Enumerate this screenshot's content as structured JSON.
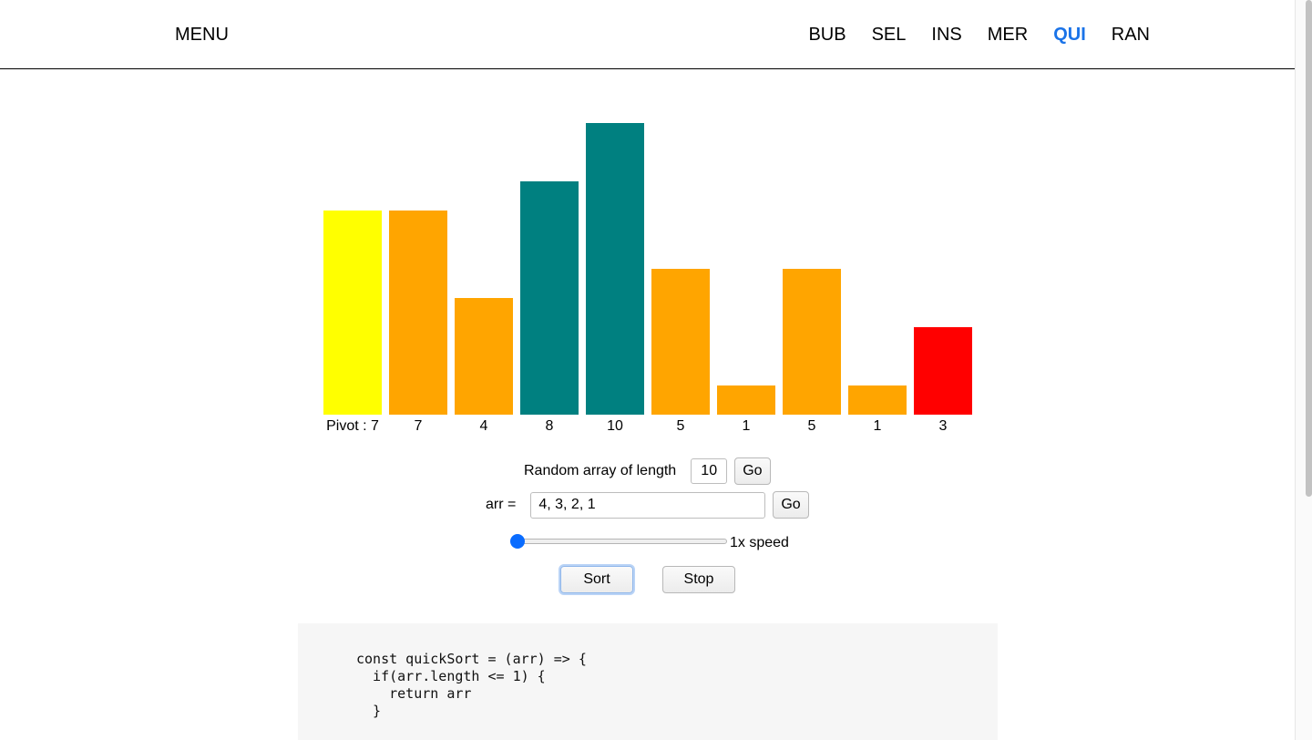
{
  "header": {
    "menu_label": "MENU",
    "nav": [
      {
        "label": "BUB",
        "active": false
      },
      {
        "label": "SEL",
        "active": false
      },
      {
        "label": "INS",
        "active": false
      },
      {
        "label": "MER",
        "active": false
      },
      {
        "label": "QUI",
        "active": true
      },
      {
        "label": "RAN",
        "active": false
      }
    ],
    "active_color": "#1a73e8"
  },
  "chart_data": {
    "type": "bar",
    "categories": [
      "Pivot : 7",
      "7",
      "4",
      "8",
      "10",
      "5",
      "1",
      "5",
      "1",
      "3"
    ],
    "values": [
      7,
      7,
      4,
      8,
      10,
      5,
      1,
      5,
      1,
      3
    ],
    "colors": [
      "#ffff00",
      "#ffa500",
      "#ffa500",
      "#008080",
      "#008080",
      "#ffa500",
      "#ffa500",
      "#ffa500",
      "#ffa500",
      "#ff0000"
    ],
    "ylim": [
      0,
      10
    ]
  },
  "controls": {
    "random_label": "Random array of length",
    "random_length": "10",
    "random_go": "Go",
    "arr_label": "arr =",
    "arr_value": "4, 3, 2, 1",
    "arr_go": "Go",
    "speed_label": "1x speed",
    "speed_value": 1,
    "sort_label": "Sort",
    "stop_label": "Stop"
  },
  "code": {
    "lines": "const quickSort = (arr) => {\n  if(arr.length <= 1) {\n    return arr\n  }"
  }
}
